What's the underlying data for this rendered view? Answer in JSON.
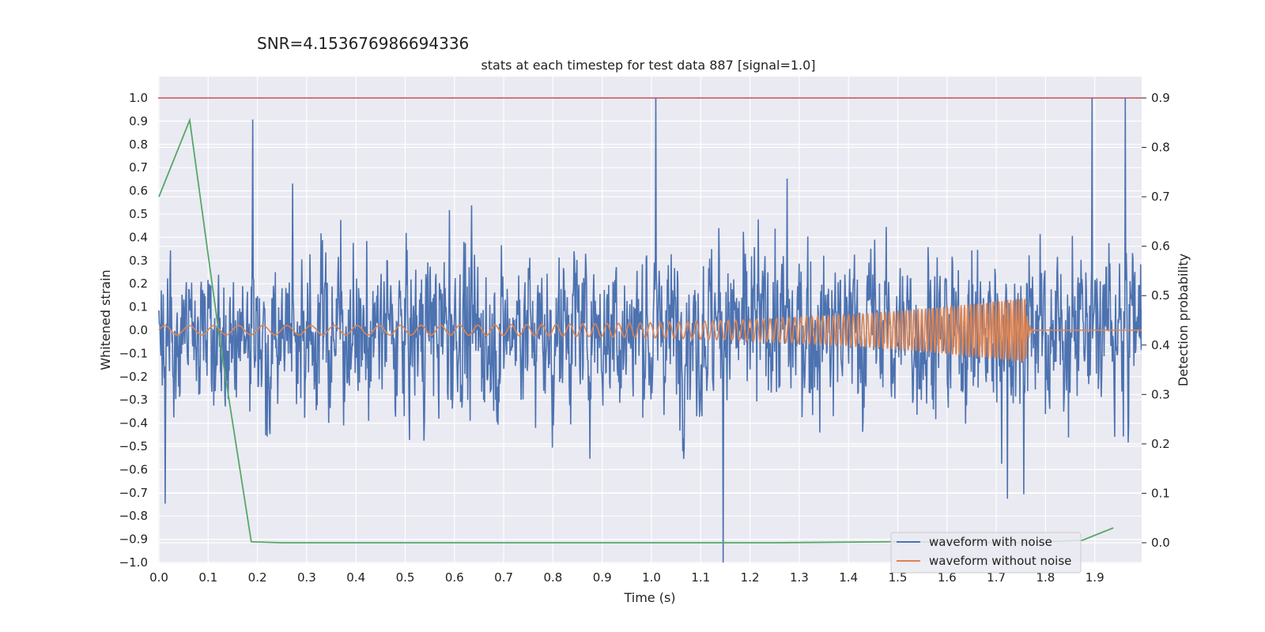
{
  "chart_data": {
    "type": "line",
    "suptitle": "SNR=4.153676986694336",
    "title": "stats at each timestep for test data 887 [signal=1.0]",
    "xlabel": "Time (s)",
    "ylabel": "Whitened strain",
    "y2label": "Detection probability",
    "xlim": [
      0.0,
      2.0
    ],
    "ylim": [
      -1.0,
      1.0
    ],
    "y2lim": [
      -0.04,
      0.94
    ],
    "xticks": [
      0.0,
      0.1,
      0.2,
      0.3,
      0.4,
      0.5,
      0.6,
      0.7,
      0.8,
      0.9,
      1.0,
      1.1,
      1.2,
      1.3,
      1.4,
      1.5,
      1.6,
      1.7,
      1.8,
      1.9
    ],
    "xtick_labels": [
      "0.0",
      "0.1",
      "0.2",
      "0.3",
      "0.4",
      "0.5",
      "0.6",
      "0.7",
      "0.8",
      "0.9",
      "1.0",
      "1.1",
      "1.2",
      "1.3",
      "1.4",
      "1.5",
      "1.6",
      "1.7",
      "1.8",
      "1.9"
    ],
    "yticks": [
      1.0,
      0.9,
      0.8,
      0.7,
      0.6,
      0.5,
      0.4,
      0.3,
      0.2,
      0.1,
      0.0,
      -0.1,
      -0.2,
      -0.3,
      -0.4,
      -0.5,
      -0.6,
      -0.7,
      -0.8,
      -0.9,
      -1.0
    ],
    "ytick_labels": [
      "1.0",
      "0.9",
      "0.8",
      "0.7",
      "0.6",
      "0.5",
      "0.4",
      "0.3",
      "0.2",
      "0.1",
      "0.0",
      "−0.1",
      "−0.2",
      "−0.3",
      "−0.4",
      "−0.5",
      "−0.6",
      "−0.7",
      "−0.8",
      "−0.9",
      "−1.0"
    ],
    "y2ticks": [
      0.9,
      0.8,
      0.7,
      0.6,
      0.5,
      0.4,
      0.3,
      0.2,
      0.1,
      0.0
    ],
    "y2tick_labels": [
      "0.9",
      "0.8",
      "0.7",
      "0.6",
      "0.5",
      "0.4",
      "0.3",
      "0.2",
      "0.1",
      "0.0"
    ],
    "threshold": {
      "axis": "right",
      "value": 0.9,
      "color": "#c44e52"
    },
    "noisy_waveform": {
      "name": "waveform with noise",
      "color": "#4c72b0",
      "samples": 2048,
      "amplitude_range": [
        -1.0,
        1.0
      ],
      "note": "dense noise-dominated whitened strain sampled over 0-2 s"
    },
    "clean_waveform": {
      "name": "waveform without noise",
      "color": "#dd8452",
      "f_start_hz": 20,
      "f_end_hz": 180,
      "t_merger": 1.76,
      "amp_start": 0.02,
      "amp_peak": 0.14
    },
    "detection_probability": {
      "name": "detection probability",
      "color": "#55a868",
      "x": [
        0.0,
        0.0625,
        0.125,
        0.1875,
        0.25,
        0.5,
        0.75,
        1.0,
        1.25,
        1.5,
        1.75,
        1.875,
        1.9375
      ],
      "y": [
        0.7,
        0.855,
        0.4,
        0.002,
        0.0,
        0.0,
        0.0,
        0.0,
        0.0,
        0.002,
        0.0,
        0.005,
        0.03
      ]
    },
    "legend": {
      "position": "lower-right",
      "entries": [
        {
          "label": "waveform with noise",
          "color": "#4c72b0"
        },
        {
          "label": "waveform without noise",
          "color": "#dd8452"
        }
      ]
    }
  }
}
